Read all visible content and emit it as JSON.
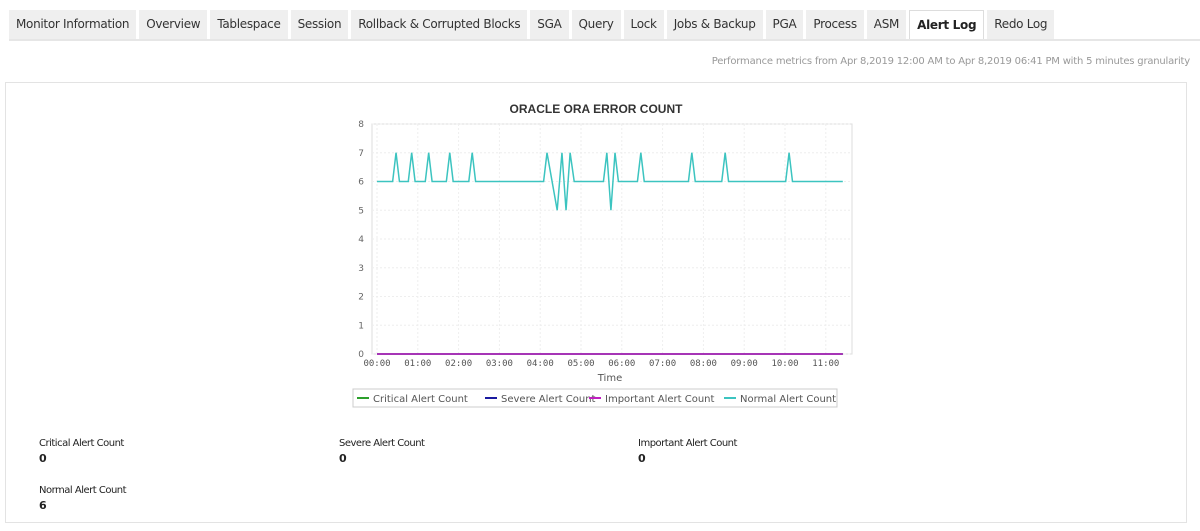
{
  "tabs": [
    {
      "label": "Monitor Information"
    },
    {
      "label": "Overview"
    },
    {
      "label": "Tablespace"
    },
    {
      "label": "Session"
    },
    {
      "label": "Rollback & Corrupted Blocks"
    },
    {
      "label": "SGA"
    },
    {
      "label": "Query"
    },
    {
      "label": "Lock"
    },
    {
      "label": "Jobs & Backup"
    },
    {
      "label": "PGA"
    },
    {
      "label": "Process"
    },
    {
      "label": "ASM"
    },
    {
      "label": "Alert Log",
      "active": true
    },
    {
      "label": "Redo Log"
    }
  ],
  "meta_text": "Performance metrics from Apr 8,2019 12:00 AM to Apr 8,2019 06:41 PM with 5 minutes granularity",
  "chart_data": {
    "type": "line",
    "title": "ORACLE ORA ERROR COUNT",
    "xlabel": "Time",
    "ylabel": "",
    "ylim": [
      0,
      8
    ],
    "yticks": [
      "0",
      "1",
      "2",
      "3",
      "4",
      "5",
      "6",
      "7",
      "8"
    ],
    "xticks": [
      "00:00",
      "01:00",
      "02:00",
      "03:00",
      "04:00",
      "05:00",
      "06:00",
      "07:00",
      "08:00",
      "09:00",
      "10:00",
      "11:00"
    ],
    "grid": true,
    "legend": "bottom",
    "series": [
      {
        "name": "Critical Alert Count",
        "color": "#2ca02c",
        "points": [
          [
            "00:00",
            0
          ],
          [
            "11:25",
            0
          ]
        ]
      },
      {
        "name": "Severe Alert Count",
        "color": "#1a1aa0",
        "points": [
          [
            "00:00",
            0
          ],
          [
            "11:25",
            0
          ]
        ]
      },
      {
        "name": "Important Alert Count",
        "color": "#c020c0",
        "points": [
          [
            "00:00",
            0
          ],
          [
            "11:25",
            0
          ]
        ]
      },
      {
        "name": "Normal Alert Count",
        "color": "#3cc4c0",
        "points": [
          [
            "00:00",
            6
          ],
          [
            "00:23",
            6
          ],
          [
            "00:28",
            7
          ],
          [
            "00:33",
            6
          ],
          [
            "00:46",
            6
          ],
          [
            "00:51",
            7
          ],
          [
            "00:56",
            6
          ],
          [
            "01:11",
            6
          ],
          [
            "01:16",
            7
          ],
          [
            "01:21",
            6
          ],
          [
            "01:42",
            6
          ],
          [
            "01:47",
            7
          ],
          [
            "01:52",
            6
          ],
          [
            "02:15",
            6
          ],
          [
            "02:20",
            7
          ],
          [
            "02:25",
            6
          ],
          [
            "04:05",
            6
          ],
          [
            "04:10",
            7
          ],
          [
            "04:25",
            5
          ],
          [
            "04:32",
            7
          ],
          [
            "04:38",
            5
          ],
          [
            "04:44",
            7
          ],
          [
            "04:50",
            6
          ],
          [
            "05:33",
            6
          ],
          [
            "05:38",
            7
          ],
          [
            "05:44",
            5
          ],
          [
            "05:50",
            7
          ],
          [
            "05:55",
            6
          ],
          [
            "06:23",
            6
          ],
          [
            "06:28",
            7
          ],
          [
            "06:33",
            6
          ],
          [
            "07:38",
            6
          ],
          [
            "07:43",
            7
          ],
          [
            "07:48",
            6
          ],
          [
            "08:27",
            6
          ],
          [
            "08:32",
            7
          ],
          [
            "08:37",
            6
          ],
          [
            "10:01",
            6
          ],
          [
            "10:06",
            7
          ],
          [
            "10:11",
            6
          ],
          [
            "11:25",
            6
          ]
        ]
      }
    ]
  },
  "stats": [
    {
      "label": "Critical Alert Count",
      "value": "0"
    },
    {
      "label": "Severe Alert Count",
      "value": "0"
    },
    {
      "label": "Important Alert Count",
      "value": "0"
    },
    {
      "label": "Normal Alert Count",
      "value": "6"
    }
  ]
}
